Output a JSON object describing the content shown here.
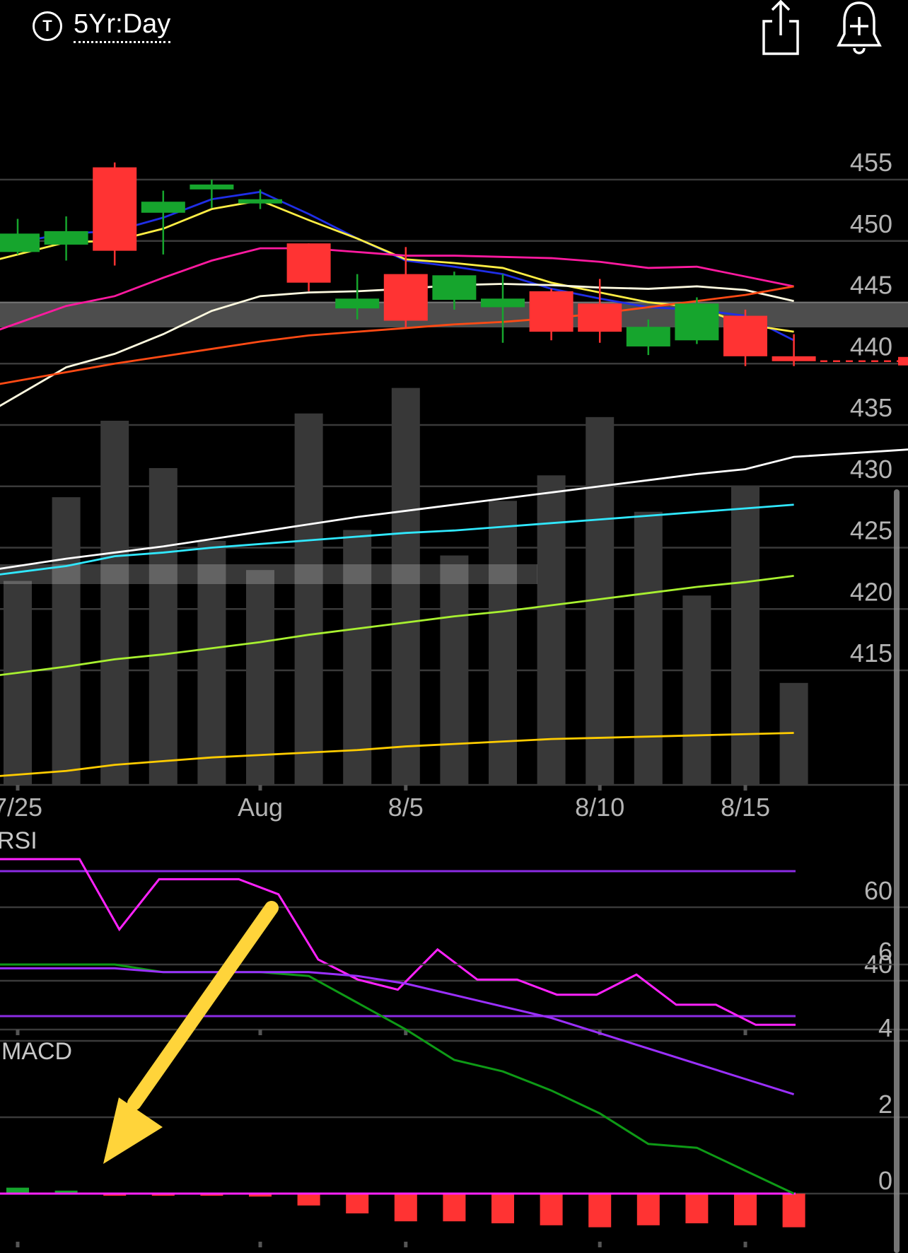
{
  "header": {
    "t_badge": "T",
    "period": "5Yr:Day",
    "share_icon": "share-icon",
    "alert_icon": "add-alert-bell-icon"
  },
  "colors": {
    "up": "#16a52d",
    "down": "#ff3333",
    "grid": "#3a3a3a",
    "volume": "#383838",
    "ma_blue": "#1f2ee6",
    "ma_yellow": "#ffee44",
    "ma_pink": "#ff1aa0",
    "ma_cream": "#fffbe0",
    "ma_orange": "#ff4a14",
    "ma_white": "#ffffff",
    "ma_cyan": "#30e8ff",
    "ma_lime": "#a8f030",
    "ma_gold": "#ffcc00",
    "rsi_line": "#ff22ff",
    "rsi_bands": "#8a2be2",
    "macd_line": "#0e9a16",
    "macd_signal": "#9b30ff",
    "macd_zero": "#ff22ff",
    "arrow": "#ffd43a"
  },
  "chart_data": [
    {
      "type": "candlestick",
      "name": "price",
      "y_ticks": [
        455,
        450,
        445,
        440,
        435,
        430,
        425,
        420,
        415
      ],
      "x_ticks": [
        {
          "label": "7/25",
          "index": 0
        },
        {
          "label": "Aug",
          "index": 5
        },
        {
          "label": "8/5",
          "index": 8
        },
        {
          "label": "8/10",
          "index": 12
        },
        {
          "label": "8/15",
          "index": 15
        }
      ],
      "candles": [
        {
          "open": 449.1,
          "close": 450.6,
          "high": 451.8,
          "low": 448.9
        },
        {
          "open": 449.7,
          "close": 450.8,
          "high": 452.0,
          "low": 448.4
        },
        {
          "open": 456.0,
          "close": 449.2,
          "high": 456.4,
          "low": 448.0
        },
        {
          "open": 452.3,
          "close": 453.2,
          "high": 454.1,
          "low": 448.9
        },
        {
          "open": 454.2,
          "close": 454.6,
          "high": 455.0,
          "low": 452.7
        },
        {
          "open": 453.2,
          "close": 453.4,
          "high": 454.2,
          "low": 452.6
        },
        {
          "open": 449.8,
          "close": 446.6,
          "high": 449.8,
          "low": 445.9
        },
        {
          "open": 444.5,
          "close": 445.3,
          "high": 447.3,
          "low": 443.6
        },
        {
          "open": 447.3,
          "close": 443.5,
          "high": 449.5,
          "low": 442.9
        },
        {
          "open": 445.2,
          "close": 447.2,
          "high": 447.5,
          "low": 444.4
        },
        {
          "open": 444.6,
          "close": 445.3,
          "high": 447.3,
          "low": 441.7
        },
        {
          "open": 445.9,
          "close": 442.6,
          "high": 446.1,
          "low": 441.9
        },
        {
          "open": 444.9,
          "close": 442.6,
          "high": 446.9,
          "low": 441.7
        },
        {
          "open": 441.4,
          "close": 443.0,
          "high": 443.6,
          "low": 440.7
        },
        {
          "open": 441.9,
          "close": 444.9,
          "high": 445.4,
          "low": 441.6
        },
        {
          "open": 443.9,
          "close": 440.6,
          "high": 444.4,
          "low": 439.8
        },
        {
          "open": 440.6,
          "close": 440.2,
          "high": 442.4,
          "low": 439.8
        }
      ],
      "last_price": 440.2,
      "volume_relative": [
        0.56,
        0.79,
        1.0,
        0.87,
        0.67,
        0.59,
        1.02,
        0.7,
        1.09,
        0.63,
        0.78,
        0.85,
        1.01,
        0.75,
        0.52,
        0.82,
        0.28
      ],
      "moving_averages": [
        {
          "color_key": "ma_blue",
          "values": [
            449.9,
            450.6,
            450.8,
            451.9,
            453.4,
            454.0,
            452.2,
            450.2,
            448.4,
            447.9,
            447.3,
            446.1,
            445.3,
            444.6,
            444.4,
            443.9,
            441.9
          ]
        },
        {
          "color_key": "ma_yellow",
          "values": [
            448.9,
            449.9,
            450.0,
            451.0,
            452.6,
            453.3,
            451.7,
            450.2,
            448.5,
            448.2,
            447.8,
            446.6,
            445.8,
            445.0,
            444.6,
            443.2,
            442.6
          ]
        },
        {
          "color_key": "ma_pink",
          "values": [
            443.3,
            444.7,
            445.5,
            447.0,
            448.4,
            449.4,
            449.4,
            449.1,
            448.8,
            448.8,
            448.7,
            448.6,
            448.3,
            447.8,
            447.9,
            447.1,
            446.3
          ]
        },
        {
          "color_key": "ma_cream",
          "values": [
            437.4,
            439.7,
            440.8,
            442.4,
            444.3,
            445.5,
            445.8,
            445.9,
            446.1,
            446.4,
            446.5,
            446.4,
            446.2,
            446.1,
            446.3,
            446.0,
            445.1
          ]
        },
        {
          "color_key": "ma_orange",
          "values": [
            438.6,
            439.3,
            440.0,
            440.6,
            441.2,
            441.8,
            442.3,
            442.6,
            442.9,
            443.2,
            443.4,
            443.7,
            444.1,
            444.6,
            445.1,
            445.6,
            446.3
          ]
        },
        {
          "color_key": "ma_white",
          "values": [
            423.5,
            424.1,
            424.6,
            425.1,
            425.7,
            426.3,
            426.9,
            427.5,
            428.0,
            428.5,
            429.0,
            429.5,
            430.0,
            430.5,
            431.0,
            431.4,
            432.4
          ]
        },
        {
          "color_key": "ma_cyan",
          "values": [
            423.0,
            423.5,
            424.3,
            424.6,
            425.0,
            425.3,
            425.6,
            425.9,
            426.2,
            426.4,
            426.7,
            427.0,
            427.3,
            427.6,
            427.9,
            428.2,
            428.5
          ]
        },
        {
          "color_key": "ma_lime",
          "values": [
            414.8,
            415.3,
            415.9,
            416.3,
            416.8,
            417.3,
            417.9,
            418.4,
            418.9,
            419.4,
            419.8,
            420.3,
            420.8,
            421.3,
            421.8,
            422.2,
            422.7
          ]
        },
        {
          "color_key": "ma_gold",
          "values": [
            406.5,
            406.8,
            407.3,
            407.6,
            407.9,
            408.1,
            408.3,
            408.5,
            408.8,
            409.0,
            409.2,
            409.4,
            409.5,
            409.6,
            409.7,
            409.8,
            409.9
          ]
        }
      ]
    },
    {
      "type": "line",
      "name": "rsi",
      "label": "RSI",
      "y_ticks": [
        60,
        40
      ],
      "bands": [
        70,
        30
      ],
      "values": [
        72,
        72,
        72,
        58,
        68,
        68,
        68,
        65,
        52,
        48,
        46,
        54,
        48,
        48,
        45,
        45,
        49,
        43,
        43,
        39,
        39
      ]
    },
    {
      "type": "line+bar",
      "name": "macd",
      "label": "MACD",
      "y_ticks": [
        6,
        4,
        2,
        0
      ],
      "macd": [
        6.0,
        6.0,
        6.0,
        5.8,
        5.8,
        5.8,
        5.7,
        5.0,
        4.3,
        3.5,
        3.2,
        2.7,
        2.1,
        1.3,
        1.2,
        0.6,
        0.0
      ],
      "signal": [
        5.9,
        5.9,
        5.9,
        5.8,
        5.8,
        5.8,
        5.8,
        5.7,
        5.5,
        5.2,
        4.9,
        4.6,
        4.2,
        3.8,
        3.4,
        3.0,
        2.6
      ],
      "histogram": [
        0.3,
        0.15,
        -0.1,
        -0.05,
        -0.05,
        -0.15,
        -0.6,
        -1.0,
        -1.4,
        -1.4,
        -1.5,
        -1.6,
        -1.7,
        -1.6,
        -1.5,
        -1.6,
        -1.7
      ]
    }
  ]
}
